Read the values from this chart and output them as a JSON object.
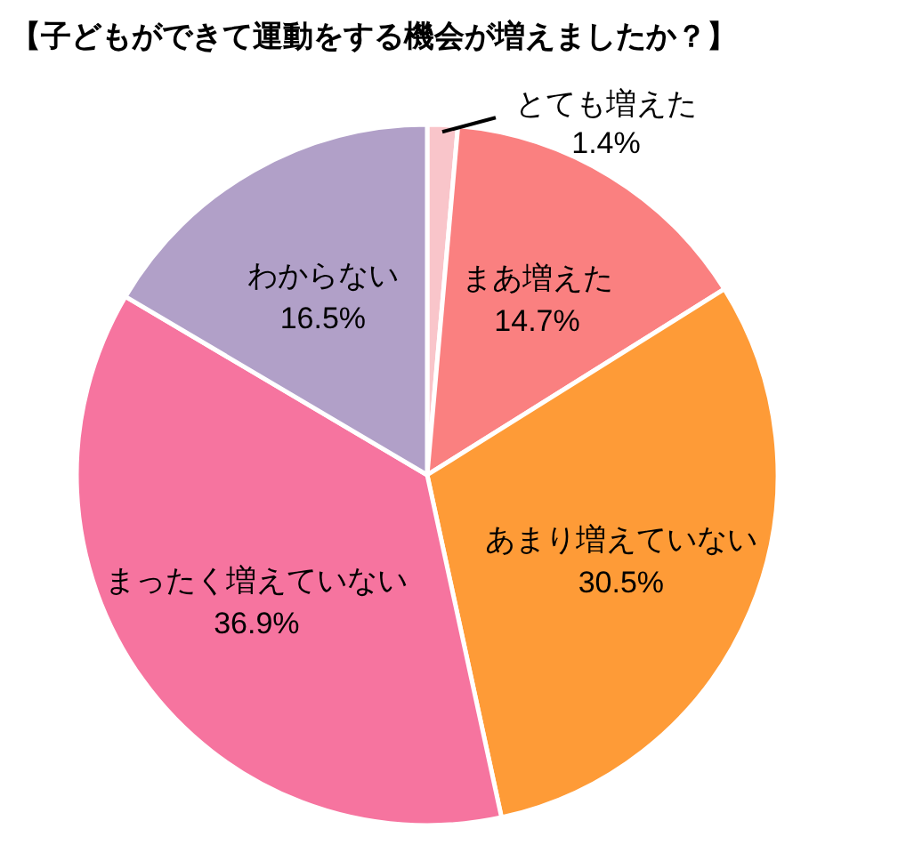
{
  "chart_data": {
    "type": "pie",
    "title": "【子どもができて運動をする機会が増えましたか？】",
    "categories": [
      "とても増えた",
      "まあ増えた",
      "あまり増えていない",
      "まったく増えていない",
      "わからない"
    ],
    "values": [
      1.4,
      14.7,
      30.5,
      36.9,
      16.5
    ],
    "value_labels": [
      "1.4%",
      "14.7%",
      "30.5%",
      "36.9%",
      "16.5%"
    ],
    "colors": [
      "#f9c5ca",
      "#fa8080",
      "#fe9b37",
      "#f6749f",
      "#b1a0c8"
    ]
  }
}
